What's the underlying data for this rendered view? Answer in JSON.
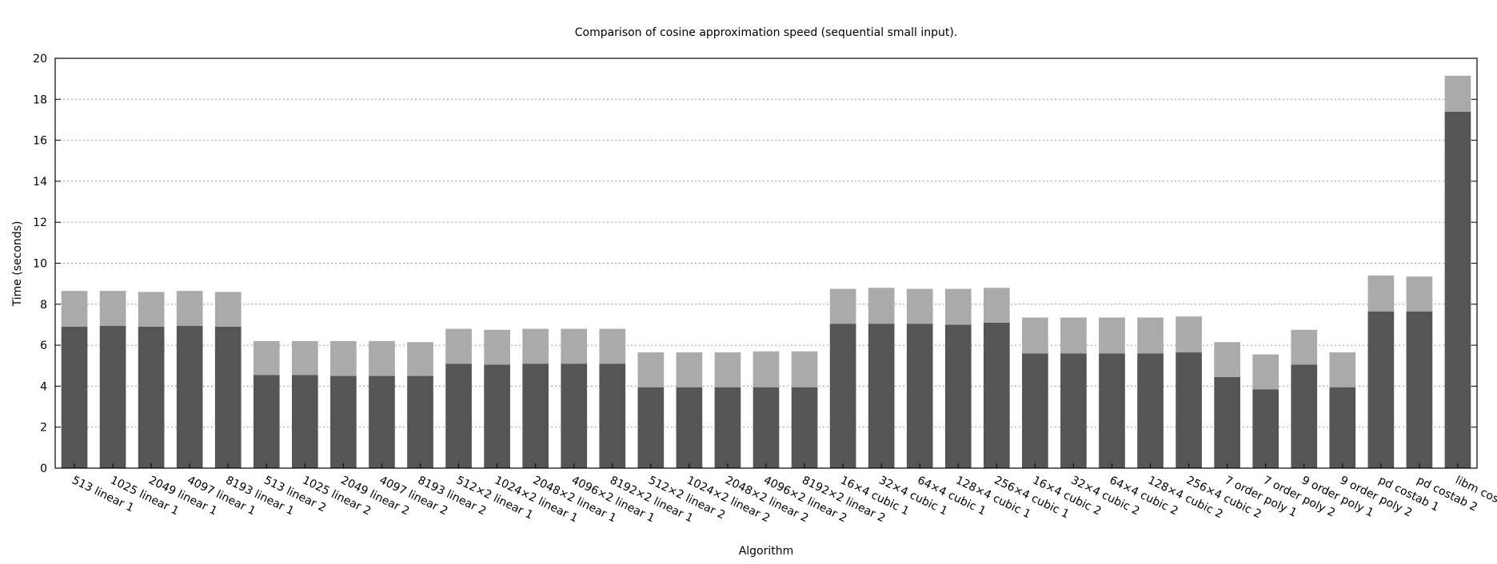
{
  "chart_data": {
    "type": "bar",
    "stacked": true,
    "title": "Comparison of cosine approximation speed (sequential small input).",
    "xlabel": "Algorithm",
    "ylabel": "Time (seconds)",
    "ylim": [
      0,
      20
    ],
    "yticks": [
      "0",
      "2",
      "4",
      "6",
      "8",
      "10",
      "12",
      "14",
      "16",
      "18",
      "20"
    ],
    "grid": true,
    "categories": [
      "513 linear 1",
      "1025 linear 1",
      "2049 linear 1",
      "4097 linear 1",
      "8193 linear 1",
      "513 linear 2",
      "1025 linear 2",
      "2049 linear 2",
      "4097 linear 2",
      "8193 linear 2",
      "512×2 linear 1",
      "1024×2 linear 1",
      "2048×2 linear 1",
      "4096×2 linear 1",
      "8192×2 linear 1",
      "512×2 linear 2",
      "1024×2 linear 2",
      "2048×2 linear 2",
      "4096×2 linear 2",
      "8192×2 linear 2",
      "16×4 cubic 1",
      "32×4 cubic 1",
      "64×4 cubic 1",
      "128×4 cubic 1",
      "256×4 cubic 1",
      "16×4 cubic 2",
      "32×4 cubic 2",
      "64×4 cubic 2",
      "128×4 cubic 2",
      "256×4 cubic 2",
      "7 order poly 1",
      "7 order poly 2",
      "9 order poly 1",
      "9 order poly 2",
      "pd costab 1",
      "pd costab 2",
      "libm cosf()"
    ],
    "series": [
      {
        "color": "#555555",
        "values": [
          6.9,
          6.95,
          6.9,
          6.95,
          6.9,
          4.55,
          4.55,
          4.5,
          4.5,
          4.5,
          5.1,
          5.05,
          5.1,
          5.1,
          5.1,
          3.95,
          3.95,
          3.95,
          3.95,
          3.95,
          7.05,
          7.05,
          7.05,
          7.0,
          7.1,
          5.6,
          5.6,
          5.6,
          5.6,
          5.65,
          4.45,
          3.85,
          5.05,
          3.95,
          7.65,
          7.65,
          17.4
        ]
      },
      {
        "color": "#aaaaaa",
        "values": [
          1.75,
          1.7,
          1.7,
          1.7,
          1.7,
          1.65,
          1.65,
          1.7,
          1.7,
          1.65,
          1.7,
          1.7,
          1.7,
          1.7,
          1.7,
          1.7,
          1.7,
          1.7,
          1.75,
          1.75,
          1.7,
          1.75,
          1.7,
          1.75,
          1.7,
          1.75,
          1.75,
          1.75,
          1.75,
          1.75,
          1.7,
          1.7,
          1.7,
          1.7,
          1.75,
          1.7,
          1.75
        ]
      }
    ]
  }
}
